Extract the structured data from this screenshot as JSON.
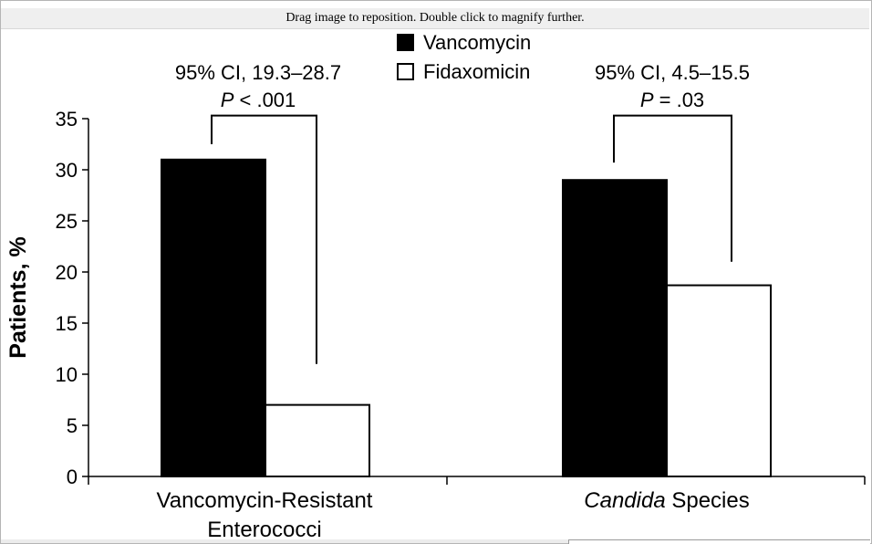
{
  "viewer": {
    "hint": "Drag image to reposition. Double click to magnify further."
  },
  "chart_data": {
    "type": "bar",
    "ylabel": "Patients, %",
    "ylim": [
      0,
      35
    ],
    "yticks": [
      0,
      5,
      10,
      15,
      20,
      25,
      30,
      35
    ],
    "categories": [
      {
        "lines": [
          "Vancomycin-Resistant",
          "Enterococci"
        ]
      },
      {
        "italic": "Candida",
        "rest": " Species"
      }
    ],
    "series": [
      {
        "name": "Vancomycin",
        "values": [
          31,
          29
        ],
        "fill": "#000000"
      },
      {
        "name": "Fidaxomicin",
        "values": [
          7,
          18.7
        ],
        "fill": "#ffffff"
      }
    ],
    "annotations": [
      {
        "ci": "95% CI, 19.3–28.7",
        "p_italic": "P",
        "p_rest": " < .001"
      },
      {
        "ci": "95% CI, 4.5–15.5",
        "p_italic": "P",
        "p_rest": " = .03"
      }
    ],
    "brackets": [
      {
        "left_end": 32.5,
        "right_end": 11,
        "top": 35.3
      },
      {
        "left_end": 30.7,
        "right_end": 21,
        "top": 35.3
      }
    ],
    "legend": {
      "position": "top-center"
    },
    "grid": false,
    "colors": {
      "axis": "#000000",
      "vancomycin": "#000000",
      "fidaxomicin": "#ffffff"
    }
  }
}
